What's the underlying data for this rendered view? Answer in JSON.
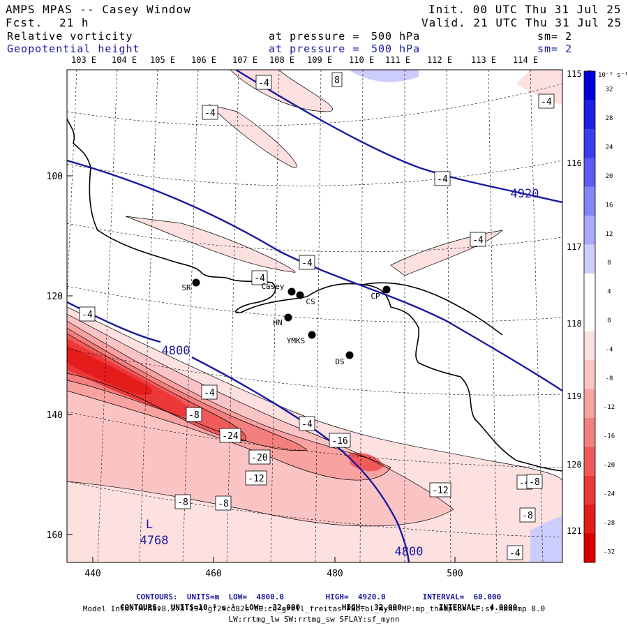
{
  "header": {
    "title": "AMPS MPAS -- Casey Window",
    "fcst_label": "Fcst.",
    "fcst_value": "21 h",
    "init": "Init. 00 UTC Thu 31 Jul 25",
    "valid": "Valid. 21 UTC Thu 31 Jul 25"
  },
  "fields": [
    {
      "name": "Relative vorticity",
      "level_label": "at pressure =",
      "level_value": "500 hPa",
      "sm": "sm= 2",
      "color": "#000000"
    },
    {
      "name": "Geopotential height",
      "level_label": "at pressure =",
      "level_value": "500 hPa",
      "sm": "sm= 2",
      "color": "#1a1aa0"
    }
  ],
  "longitude_top": [
    "103 E",
    "104 E",
    "105 E",
    "106 E",
    "107 E",
    "108 E",
    "109 E",
    "110 E",
    "111 E",
    "112 E",
    "113 E",
    "114 E"
  ],
  "longitude_right": [
    "115 E",
    "116 E",
    "117 E",
    "118 E",
    "119 E",
    "120 E",
    "121 E"
  ],
  "y_ticks": [
    "100",
    "120",
    "140",
    "160"
  ],
  "x_ticks": [
    "440",
    "460",
    "480",
    "500"
  ],
  "colorbar": {
    "unit_label": "10⁻⁵ s⁻¹",
    "values": [
      "32",
      "28",
      "24",
      "20",
      "16",
      "12",
      "8",
      "4",
      "0",
      "-4",
      "-8",
      "-12",
      "-16",
      "-20",
      "-24",
      "-28",
      "-32"
    ],
    "colors": [
      "#0000d8",
      "#1f1fe6",
      "#3d3df0",
      "#5b5bf5",
      "#8585f8",
      "#a9a9fb",
      "#cdcdfd",
      "#ffffff",
      "#ffffff",
      "#fde0e0",
      "#fbc4c4",
      "#f8a2a2",
      "#f47f7f",
      "#f05a5a",
      "#eb3838",
      "#e41c1c",
      "#d80000"
    ]
  },
  "stations": [
    {
      "id": "SR"
    },
    {
      "id": "Casey"
    },
    {
      "id": "CS"
    },
    {
      "id": "HN"
    },
    {
      "id": "YMKS"
    },
    {
      "id": "DS"
    },
    {
      "id": "CP"
    }
  ],
  "height_labels": [
    "4920",
    "4800",
    "4800",
    "L",
    "4768"
  ],
  "vorticity_labels": [
    "8",
    "-4",
    "-4",
    "-4",
    "-4",
    "-4",
    "-4",
    "-4",
    "-4",
    "-4",
    "-4",
    "-4",
    "-8",
    "-24",
    "-20",
    "-16",
    "-12",
    "-12",
    "-8",
    "-8",
    "-8",
    "-8",
    "-4"
  ],
  "footer": {
    "contours_line1": {
      "label": "CONTOURS:",
      "units": "UNITS=m",
      "low": "LOW=  4800.0",
      "high": "HIGH=  4920.0",
      "interval": "INTERVAL=  60.000"
    },
    "contours_line2": {
      "label": "CONTOURS:",
      "units": "UNITS=10⁻⁵ s⁻¹",
      "low": "LOW= -32.000",
      "high": "HIGH=  32.000",
      "interval": "INTERVAL=  4.0000"
    },
    "model_info": "Model Info: MPASv8.2.3-194-gf29cd82c CU:cu_grell_freitas PBL:bl_mynn MP:mp_thompson SF:sf_noahmp 8.0",
    "model_info2": "LW:rrtmg_lw SW:rrtmg_sw SFLAY:sf_mynn"
  }
}
